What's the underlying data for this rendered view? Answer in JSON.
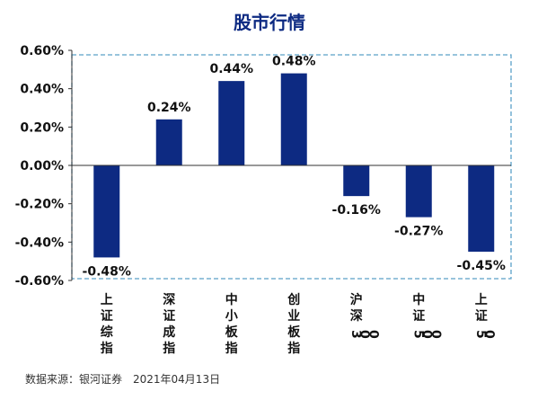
{
  "chart_data": {
    "type": "bar",
    "title": "股市行情",
    "categories": [
      "上证综指",
      "深证成指",
      "中小板指",
      "创业板指",
      "沪深300",
      "中证500",
      "上证50"
    ],
    "values": [
      -0.48,
      0.24,
      0.44,
      0.48,
      -0.16,
      -0.27,
      -0.45
    ],
    "value_labels": [
      "-0.48%",
      "0.24%",
      "0.44%",
      "0.48%",
      "-0.16%",
      "-0.27%",
      "-0.45%"
    ],
    "y_ticks": [
      "0.60%",
      "0.40%",
      "0.20%",
      "0.00%",
      "-0.20%",
      "-0.40%",
      "-0.60%"
    ],
    "ylim": [
      -0.6,
      0.6
    ],
    "unit": "%",
    "grid": false,
    "legend": "none",
    "bar_color": "#0d2a82",
    "frame_color": "#5aa0c8"
  },
  "source": "数据来源：银河证券　2021年04月13日"
}
